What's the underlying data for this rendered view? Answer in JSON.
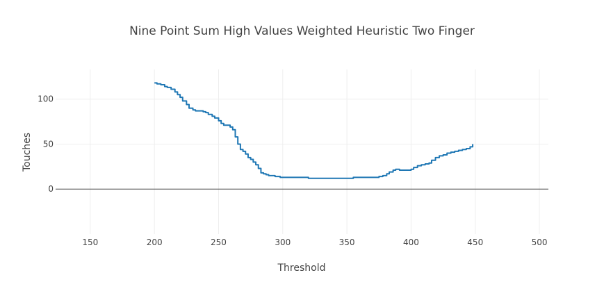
{
  "chart_data": {
    "type": "line",
    "title": "Nine Point Sum High Values Weighted Heuristic Two Finger",
    "xlabel": "Threshold",
    "ylabel": "Touches",
    "xlim": [
      123,
      507
    ],
    "ylim": [
      -50,
      133
    ],
    "x_ticks": [
      150,
      200,
      250,
      300,
      350,
      400,
      450,
      500
    ],
    "y_ticks": [
      0,
      50,
      100
    ],
    "grid": true,
    "legend": "none",
    "zero_line": true,
    "series": [
      {
        "color": "#1f77b4",
        "x": [
          200,
          202,
          205,
          208,
          210,
          213,
          216,
          218,
          220,
          222,
          225,
          227,
          230,
          232,
          235,
          238,
          240,
          242,
          245,
          247,
          250,
          252,
          254,
          257,
          259,
          261,
          263,
          265,
          267,
          269,
          271,
          273,
          275,
          277,
          279,
          281,
          283,
          285,
          287,
          289,
          291,
          294,
          298,
          300,
          305,
          310,
          315,
          320,
          325,
          330,
          335,
          340,
          345,
          350,
          355,
          360,
          365,
          370,
          375,
          378,
          381,
          383,
          386,
          388,
          391,
          394,
          397,
          400,
          402,
          405,
          408,
          411,
          414,
          416,
          419,
          422,
          425,
          428,
          431,
          434,
          437,
          440,
          443,
          446,
          448
        ],
        "y": [
          118,
          117,
          116,
          114,
          113,
          111,
          108,
          105,
          102,
          98,
          94,
          90,
          88,
          87,
          87,
          86,
          85,
          83,
          81,
          79,
          76,
          73,
          71,
          71,
          69,
          66,
          58,
          50,
          44,
          42,
          39,
          35,
          33,
          30,
          27,
          23,
          18,
          17,
          16,
          15,
          15,
          14,
          13,
          13,
          13,
          13,
          13,
          12,
          12,
          12,
          12,
          12,
          12,
          12,
          13,
          13,
          13,
          13,
          14,
          15,
          17,
          19,
          21,
          22,
          21,
          21,
          21,
          22,
          24,
          26,
          27,
          28,
          29,
          32,
          35,
          37,
          38,
          40,
          41,
          42,
          43,
          44,
          45,
          47,
          50
        ]
      }
    ]
  }
}
